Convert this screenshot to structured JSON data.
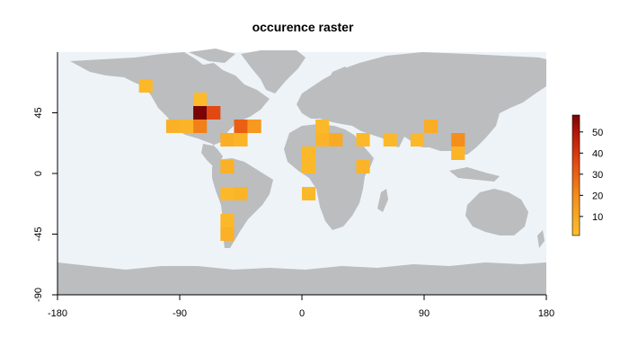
{
  "chart_data": {
    "type": "heatmap",
    "title": "occurence raster",
    "xlabel": "",
    "ylabel": "",
    "xlim": [
      -180,
      180
    ],
    "ylim": [
      -90,
      90
    ],
    "x_ticks": [
      "-180",
      "-90",
      "0",
      "90",
      "180"
    ],
    "y_ticks": [
      "-90",
      "-45",
      "0",
      "45"
    ],
    "cell_size_deg": 10,
    "colorbar": {
      "ticks": [
        "10",
        "20",
        "30",
        "40",
        "50"
      ],
      "range": [
        1,
        58
      ],
      "colors": [
        "#fcbf2b",
        "#f58d1b",
        "#e44b12",
        "#b51706",
        "#7a0403"
      ]
    },
    "background": {
      "ocean_color": "#eef3f7",
      "land_color": "#bbbdbf"
    },
    "cells": [
      {
        "lon": -115,
        "lat": 65,
        "count": 3
      },
      {
        "lon": -75,
        "lat": 55,
        "count": 2
      },
      {
        "lon": -75,
        "lat": 45,
        "count": 58
      },
      {
        "lon": -65,
        "lat": 45,
        "count": 30
      },
      {
        "lon": -95,
        "lat": 35,
        "count": 5
      },
      {
        "lon": -85,
        "lat": 35,
        "count": 4
      },
      {
        "lon": -75,
        "lat": 35,
        "count": 18
      },
      {
        "lon": -45,
        "lat": 35,
        "count": 25
      },
      {
        "lon": -35,
        "lat": 35,
        "count": 12
      },
      {
        "lon": -55,
        "lat": 25,
        "count": 6
      },
      {
        "lon": -45,
        "lat": 25,
        "count": 4
      },
      {
        "lon": -55,
        "lat": 5,
        "count": 5
      },
      {
        "lon": -55,
        "lat": -15,
        "count": 3
      },
      {
        "lon": -45,
        "lat": -15,
        "count": 4
      },
      {
        "lon": -55,
        "lat": -35,
        "count": 3
      },
      {
        "lon": -55,
        "lat": -45,
        "count": 5
      },
      {
        "lon": 15,
        "lat": 35,
        "count": 3
      },
      {
        "lon": 15,
        "lat": 25,
        "count": 4
      },
      {
        "lon": 25,
        "lat": 25,
        "count": 7
      },
      {
        "lon": 5,
        "lat": 15,
        "count": 3
      },
      {
        "lon": 45,
        "lat": 25,
        "count": 3
      },
      {
        "lon": 65,
        "lat": 25,
        "count": 3
      },
      {
        "lon": 85,
        "lat": 25,
        "count": 3
      },
      {
        "lon": 95,
        "lat": 35,
        "count": 6
      },
      {
        "lon": 115,
        "lat": 25,
        "count": 15
      },
      {
        "lon": 115,
        "lat": 15,
        "count": 4
      },
      {
        "lon": 5,
        "lat": 5,
        "count": 3
      },
      {
        "lon": 45,
        "lat": 5,
        "count": 4
      },
      {
        "lon": 5,
        "lat": -15,
        "count": 3
      }
    ]
  }
}
